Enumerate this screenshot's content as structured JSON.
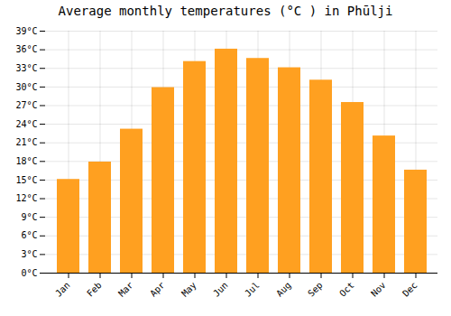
{
  "chart_data": {
    "type": "bar",
    "title": "Average monthly temperatures (°C ) in Phūlji",
    "categories": [
      "Jan",
      "Feb",
      "Mar",
      "Apr",
      "May",
      "Jun",
      "Jul",
      "Aug",
      "Sep",
      "Oct",
      "Nov",
      "Dec"
    ],
    "values": [
      15.1,
      17.9,
      23.2,
      29.9,
      34.1,
      36.1,
      34.6,
      33.1,
      31.1,
      27.5,
      22.1,
      16.6
    ],
    "color": "#FFA020",
    "ylim": [
      0,
      39
    ],
    "yticks": [
      {
        "value": 0,
        "label": "0°C"
      },
      {
        "value": 3,
        "label": "3°C"
      },
      {
        "value": 6,
        "label": "6°C"
      },
      {
        "value": 9,
        "label": "9°C"
      },
      {
        "value": 12,
        "label": "12°C"
      },
      {
        "value": 15,
        "label": "15°C"
      },
      {
        "value": 18,
        "label": "18°C"
      },
      {
        "value": 21,
        "label": "21°C"
      },
      {
        "value": 24,
        "label": "24°C"
      },
      {
        "value": 27,
        "label": "27°C"
      },
      {
        "value": 30,
        "label": "30°C"
      },
      {
        "value": 33,
        "label": "33°C"
      },
      {
        "value": 36,
        "label": "36°C"
      },
      {
        "value": 39,
        "label": "39°C"
      }
    ],
    "grid": true
  }
}
